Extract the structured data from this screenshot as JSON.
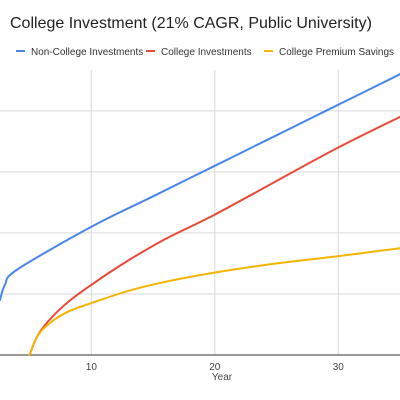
{
  "chart_data": {
    "type": "line",
    "title": "College Investment (21% CAGR, Public University)",
    "xlabel": "Year",
    "ylabel": "",
    "xlim": [
      2.6,
      35
    ],
    "ylim": [
      0,
      4.8
    ],
    "x_ticks": [
      10,
      20,
      30
    ],
    "y_gridlines": [
      1,
      2,
      3,
      4
    ],
    "grid": true,
    "legend": "top",
    "series": [
      {
        "name": "Non-College Investments",
        "color": "#4a86e8",
        "x": [
          2.6,
          3,
          4,
          10,
          15,
          20,
          25,
          30,
          35
        ],
        "y": [
          0.9,
          1.15,
          1.4,
          2.1,
          2.6,
          3.1,
          3.6,
          4.1,
          4.6
        ]
      },
      {
        "name": "College Investments",
        "color": "#e84a3a",
        "x": [
          5,
          5.6,
          6.5,
          8,
          10,
          13,
          16,
          20,
          25,
          30,
          35
        ],
        "y": [
          0,
          0.3,
          0.55,
          0.85,
          1.15,
          1.55,
          1.9,
          2.3,
          2.85,
          3.4,
          3.9
        ]
      },
      {
        "name": "College Premium Savings",
        "color": "#f4b400",
        "x": [
          5,
          5.6,
          6.5,
          8,
          10,
          13,
          16,
          20,
          25,
          30,
          35
        ],
        "y": [
          0,
          0.3,
          0.5,
          0.7,
          0.85,
          1.05,
          1.2,
          1.35,
          1.5,
          1.62,
          1.75
        ]
      }
    ]
  }
}
